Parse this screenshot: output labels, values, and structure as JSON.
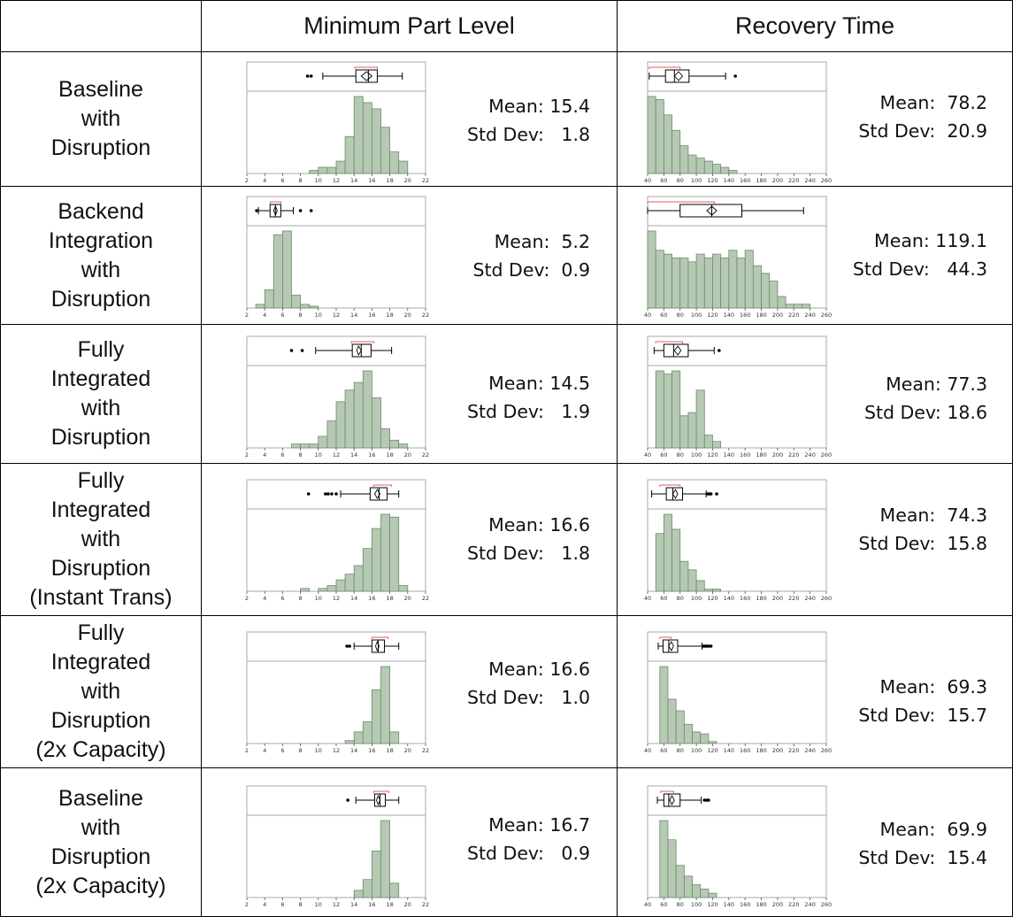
{
  "headers": {
    "corner": "",
    "min_part_level": "Minimum Part Level",
    "recovery_time": "Recovery Time"
  },
  "colors": {
    "bar_fill": "#b5c9b3",
    "bar_stroke": "#6f8a6f",
    "shortest_half": "#e06060",
    "border": "#000000",
    "frame": "#aaaaaa"
  },
  "rows": [
    {
      "label": [
        "Baseline",
        "with",
        "Disruption"
      ],
      "mpl": {
        "mean": "Mean: 15.4",
        "std": "Std Dev:   1.8"
      },
      "rt": {
        "mean": "Mean:  78.2",
        "std": "Std Dev:  20.9"
      }
    },
    {
      "label": [
        "Backend",
        "Integration",
        "with",
        "Disruption"
      ],
      "mpl": {
        "mean": "Mean:  5.2",
        "std": "Std Dev:  0.9"
      },
      "rt": {
        "mean": "Mean: 119.1",
        "std": "Std Dev:   44.3"
      }
    },
    {
      "label": [
        "Fully",
        "Integrated",
        "with",
        "Disruption"
      ],
      "mpl": {
        "mean": "Mean: 14.5",
        "std": "Std Dev:   1.9"
      },
      "rt": {
        "mean": "Mean: 77.3",
        "std": "Std Dev: 18.6"
      }
    },
    {
      "label": [
        "Fully",
        "Integrated",
        "with",
        "Disruption",
        "(Instant Trans)"
      ],
      "mpl": {
        "mean": "Mean: 16.6",
        "std": "Std Dev:   1.8"
      },
      "rt": {
        "mean": "Mean:  74.3",
        "std": "Std Dev:  15.8"
      }
    },
    {
      "label": [
        "Fully",
        "Integrated",
        "with",
        "Disruption",
        "(2x Capacity)"
      ],
      "mpl": {
        "mean": "Mean: 16.6",
        "std": "Std Dev:   1.0"
      },
      "rt": {
        "mean": "Mean:  69.3",
        "std": "Std Dev:  15.7"
      }
    },
    {
      "label": [
        "Baseline",
        "with",
        "Disruption",
        "(2x Capacity)"
      ],
      "mpl": {
        "mean": "Mean: 16.7",
        "std": "Std Dev:   0.9"
      },
      "rt": {
        "mean": "Mean:  69.9",
        "std": "Std Dev:  15.4"
      }
    }
  ],
  "chart_data": [
    {
      "id": "r0-mpl",
      "type": "bar",
      "xlim": [
        2,
        22
      ],
      "xticks": [
        2,
        4,
        6,
        8,
        10,
        12,
        14,
        16,
        18,
        20,
        22
      ],
      "bin_width": 1,
      "bins": [
        [
          9,
          1
        ],
        [
          10,
          2
        ],
        [
          11,
          2
        ],
        [
          12,
          4
        ],
        [
          13,
          12
        ],
        [
          14,
          25
        ],
        [
          15,
          23
        ],
        [
          16,
          21
        ],
        [
          17,
          15
        ],
        [
          18,
          7
        ],
        [
          19,
          4
        ]
      ],
      "box": {
        "whisker_low": 10.5,
        "q1": 14.2,
        "median": 15.6,
        "q3": 16.6,
        "whisker_high": 19.4,
        "mean": 15.4,
        "ci": [
          14.8,
          16.0
        ],
        "outliers": [
          8.8,
          9.2
        ],
        "shortest_half": [
          14.1,
          16.6
        ]
      }
    },
    {
      "id": "r0-rt",
      "type": "bar",
      "xlim": [
        40,
        260
      ],
      "xticks": [
        40,
        60,
        80,
        100,
        120,
        140,
        160,
        180,
        200,
        220,
        240,
        260
      ],
      "bin_width": 10,
      "bins": [
        [
          40,
          25
        ],
        [
          50,
          24
        ],
        [
          60,
          19
        ],
        [
          70,
          14
        ],
        [
          80,
          9
        ],
        [
          90,
          6
        ],
        [
          100,
          5
        ],
        [
          110,
          4
        ],
        [
          120,
          3
        ],
        [
          130,
          2
        ],
        [
          140,
          1
        ]
      ],
      "box": {
        "whisker_low": 42,
        "q1": 62,
        "median": 73,
        "q3": 91,
        "whisker_high": 136,
        "mean": 78.2,
        "ci": [
          73,
          83
        ],
        "outliers": [
          148
        ],
        "shortest_half": [
          42,
          80
        ]
      }
    },
    {
      "id": "r1-mpl",
      "type": "bar",
      "xlim": [
        2,
        22
      ],
      "xticks": [
        2,
        4,
        6,
        8,
        10,
        12,
        14,
        16,
        18,
        20,
        22
      ],
      "bin_width": 1,
      "bins": [
        [
          3,
          2
        ],
        [
          4,
          10
        ],
        [
          5,
          40
        ],
        [
          6,
          42
        ],
        [
          7,
          7
        ],
        [
          8,
          2
        ],
        [
          9,
          1
        ]
      ],
      "box": {
        "whisker_low": 3.3,
        "q1": 4.6,
        "median": 5.2,
        "q3": 5.8,
        "whisker_high": 7.2,
        "mean": 5.2,
        "ci": [
          5.0,
          5.4
        ],
        "outliers": [
          3.1,
          8.0,
          9.2
        ],
        "shortest_half": [
          4.6,
          5.8
        ]
      }
    },
    {
      "id": "r1-rt",
      "type": "bar",
      "xlim": [
        40,
        260
      ],
      "xticks": [
        40,
        60,
        80,
        100,
        120,
        140,
        160,
        180,
        200,
        220,
        240,
        260
      ],
      "bin_width": 10,
      "bins": [
        [
          40,
          20
        ],
        [
          50,
          15
        ],
        [
          60,
          14
        ],
        [
          70,
          13
        ],
        [
          80,
          13
        ],
        [
          90,
          12
        ],
        [
          100,
          14
        ],
        [
          110,
          13
        ],
        [
          120,
          14
        ],
        [
          130,
          13
        ],
        [
          140,
          15
        ],
        [
          150,
          13
        ],
        [
          160,
          15
        ],
        [
          170,
          11
        ],
        [
          180,
          9
        ],
        [
          190,
          7
        ],
        [
          200,
          3
        ],
        [
          210,
          1
        ],
        [
          220,
          1
        ],
        [
          230,
          1
        ]
      ],
      "box": {
        "whisker_low": 40,
        "q1": 80,
        "median": 119,
        "q3": 156,
        "whisker_high": 232,
        "mean": 119.1,
        "ci": [
          113,
          125
        ],
        "outliers": [],
        "shortest_half": [
          40,
          122
        ]
      }
    },
    {
      "id": "r2-mpl",
      "type": "bar",
      "xlim": [
        2,
        22
      ],
      "xticks": [
        2,
        4,
        6,
        8,
        10,
        12,
        14,
        16,
        18,
        20,
        22
      ],
      "bin_width": 1,
      "bins": [
        [
          7,
          1
        ],
        [
          8,
          1
        ],
        [
          9,
          1
        ],
        [
          10,
          3
        ],
        [
          11,
          7
        ],
        [
          12,
          12
        ],
        [
          13,
          15
        ],
        [
          14,
          17
        ],
        [
          15,
          20
        ],
        [
          16,
          13
        ],
        [
          17,
          5
        ],
        [
          18,
          2
        ],
        [
          19,
          1
        ]
      ],
      "box": {
        "whisker_low": 9.7,
        "q1": 13.8,
        "median": 14.8,
        "q3": 15.9,
        "whisker_high": 18.2,
        "mean": 14.5,
        "ci": [
          14.3,
          14.8
        ],
        "outliers": [
          7.0,
          8.2
        ],
        "shortest_half": [
          13.7,
          16.2
        ]
      }
    },
    {
      "id": "r2-rt",
      "type": "bar",
      "xlim": [
        40,
        260
      ],
      "xticks": [
        40,
        60,
        80,
        100,
        120,
        140,
        160,
        180,
        200,
        220,
        240,
        260
      ],
      "bin_width": 10,
      "bins": [
        [
          50,
          24
        ],
        [
          60,
          23
        ],
        [
          70,
          24
        ],
        [
          80,
          10
        ],
        [
          90,
          11
        ],
        [
          100,
          18
        ],
        [
          110,
          4
        ],
        [
          120,
          2
        ]
      ],
      "box": {
        "whisker_low": 48,
        "q1": 60,
        "median": 72,
        "q3": 90,
        "whisker_high": 122,
        "mean": 77.3,
        "ci": [
          73,
          81
        ],
        "outliers": [
          128
        ],
        "shortest_half": [
          50,
          83
        ]
      }
    },
    {
      "id": "r3-mpl",
      "type": "bar",
      "xlim": [
        2,
        22
      ],
      "xticks": [
        2,
        4,
        6,
        8,
        10,
        12,
        14,
        16,
        18,
        20,
        22
      ],
      "bin_width": 1,
      "bins": [
        [
          8,
          1
        ],
        [
          10,
          1
        ],
        [
          11,
          2
        ],
        [
          12,
          4
        ],
        [
          13,
          6
        ],
        [
          14,
          9
        ],
        [
          15,
          15
        ],
        [
          16,
          22
        ],
        [
          17,
          27
        ],
        [
          18,
          26
        ],
        [
          19,
          2
        ]
      ],
      "box": {
        "whisker_low": 12.5,
        "q1": 15.8,
        "median": 16.8,
        "q3": 17.7,
        "whisker_high": 19.0,
        "mean": 16.6,
        "ci": [
          16.3,
          16.9
        ],
        "outliers": [
          8.9,
          10.8,
          11.1,
          11.5,
          12.0
        ],
        "shortest_half": [
          16.2,
          18.2
        ]
      }
    },
    {
      "id": "r3-rt",
      "type": "bar",
      "xlim": [
        40,
        260
      ],
      "xticks": [
        40,
        60,
        80,
        100,
        120,
        140,
        160,
        180,
        200,
        220,
        240,
        260
      ],
      "bin_width": 10,
      "bins": [
        [
          50,
          27
        ],
        [
          60,
          36
        ],
        [
          70,
          29
        ],
        [
          80,
          14
        ],
        [
          90,
          10
        ],
        [
          100,
          5
        ],
        [
          110,
          1
        ],
        [
          120,
          1
        ]
      ],
      "box": {
        "whisker_low": 45,
        "q1": 63,
        "median": 71,
        "q3": 83,
        "whisker_high": 112,
        "mean": 74.3,
        "ci": [
          71,
          77
        ],
        "outliers": [
          114,
          116,
          118,
          125
        ],
        "shortest_half": [
          55,
          80
        ]
      }
    },
    {
      "id": "r4-mpl",
      "type": "bar",
      "xlim": [
        2,
        22
      ],
      "xticks": [
        2,
        4,
        6,
        8,
        10,
        12,
        14,
        16,
        18,
        20,
        22
      ],
      "bin_width": 1,
      "bins": [
        [
          13,
          2
        ],
        [
          14,
          8
        ],
        [
          15,
          15
        ],
        [
          16,
          37
        ],
        [
          17,
          53
        ],
        [
          18,
          8
        ]
      ],
      "box": {
        "whisker_low": 14.0,
        "q1": 16.0,
        "median": 16.7,
        "q3": 17.4,
        "whisker_high": 19.0,
        "mean": 16.6,
        "ci": [
          16.4,
          16.8
        ],
        "outliers": [
          13.2,
          13.5
        ],
        "shortest_half": [
          16.0,
          17.8
        ]
      }
    },
    {
      "id": "r4-rt",
      "type": "bar",
      "xlim": [
        40,
        260
      ],
      "xticks": [
        40,
        60,
        80,
        100,
        120,
        140,
        160,
        180,
        200,
        220,
        240,
        260
      ],
      "bin_width": 10,
      "bins": [
        [
          55,
          40
        ],
        [
          65,
          23
        ],
        [
          75,
          17
        ],
        [
          85,
          10
        ],
        [
          95,
          6
        ],
        [
          105,
          5
        ],
        [
          115,
          1
        ]
      ],
      "box": {
        "whisker_low": 53,
        "q1": 59,
        "median": 66,
        "q3": 77,
        "whisker_high": 107,
        "mean": 69.3,
        "ci": [
          66,
          72
        ],
        "outliers": [
          109,
          111,
          113,
          115,
          118
        ],
        "shortest_half": [
          55,
          69
        ]
      }
    },
    {
      "id": "r5-mpl",
      "type": "bar",
      "xlim": [
        2,
        22
      ],
      "xticks": [
        2,
        4,
        6,
        8,
        10,
        12,
        14,
        16,
        18,
        20,
        22
      ],
      "bin_width": 1,
      "bins": [
        [
          14,
          4
        ],
        [
          15,
          10
        ],
        [
          16,
          26
        ],
        [
          17,
          43
        ],
        [
          18,
          8
        ]
      ],
      "box": {
        "whisker_low": 14.2,
        "q1": 16.3,
        "median": 16.9,
        "q3": 17.5,
        "whisker_high": 19.0,
        "mean": 16.7,
        "ci": [
          16.5,
          16.9
        ],
        "outliers": [
          13.3
        ],
        "shortest_half": [
          16.2,
          17.9
        ]
      }
    },
    {
      "id": "r5-rt",
      "type": "bar",
      "xlim": [
        40,
        260
      ],
      "xticks": [
        40,
        60,
        80,
        100,
        120,
        140,
        160,
        180,
        200,
        220,
        240,
        260
      ],
      "bin_width": 10,
      "bins": [
        [
          55,
          36
        ],
        [
          65,
          27
        ],
        [
          75,
          15
        ],
        [
          85,
          10
        ],
        [
          95,
          6
        ],
        [
          105,
          4
        ],
        [
          115,
          2
        ]
      ],
      "box": {
        "whisker_low": 52,
        "q1": 60,
        "median": 66,
        "q3": 80,
        "whisker_high": 106,
        "mean": 69.9,
        "ci": [
          67,
          73
        ],
        "outliers": [
          110,
          113,
          115
        ],
        "shortest_half": [
          56,
          72
        ]
      }
    }
  ]
}
